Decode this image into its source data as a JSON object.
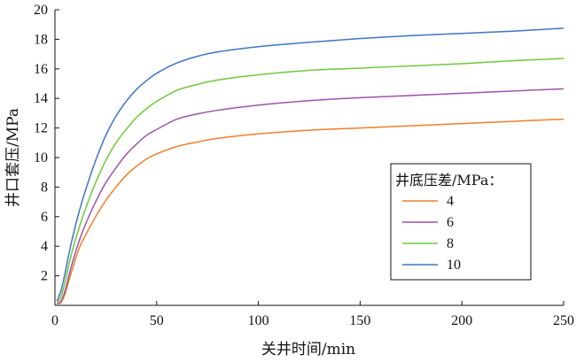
{
  "chart_data": {
    "type": "line",
    "xlabel": "关井时间/min",
    "ylabel": "井口套压/MPa",
    "xlim": [
      0,
      250
    ],
    "ylim": [
      0,
      20
    ],
    "xticks": [
      0,
      50,
      100,
      150,
      200,
      250
    ],
    "yticks": [
      2,
      4,
      6,
      8,
      10,
      12,
      14,
      16,
      18,
      20
    ],
    "grid": false,
    "legend": {
      "title": "井底压差/MPa：",
      "placement": "right"
    },
    "series": [
      {
        "name": "4",
        "color": "#f07f2a",
        "x": [
          1,
          3,
          5,
          8,
          12,
          16,
          20,
          25,
          30,
          35,
          40,
          45,
          50,
          60,
          70,
          80,
          100,
          125,
          150,
          175,
          200,
          225,
          250
        ],
        "y": [
          0.1,
          0.2,
          0.8,
          2.2,
          3.9,
          5.0,
          6.0,
          7.1,
          8.0,
          8.8,
          9.4,
          9.9,
          10.25,
          10.75,
          11.05,
          11.3,
          11.6,
          11.85,
          12.0,
          12.15,
          12.3,
          12.45,
          12.6
        ]
      },
      {
        "name": "6",
        "color": "#9b54a8",
        "x": [
          1,
          3,
          5,
          8,
          12,
          16,
          20,
          25,
          30,
          35,
          40,
          45,
          50,
          60,
          70,
          80,
          100,
          125,
          150,
          175,
          200,
          225,
          250
        ],
        "y": [
          0.1,
          0.3,
          1.0,
          2.6,
          4.4,
          5.8,
          7.0,
          8.3,
          9.3,
          10.2,
          10.9,
          11.5,
          11.9,
          12.6,
          12.95,
          13.2,
          13.55,
          13.85,
          14.05,
          14.2,
          14.35,
          14.5,
          14.65
        ]
      },
      {
        "name": "8",
        "color": "#6fc73a",
        "x": [
          1,
          3,
          5,
          8,
          12,
          16,
          20,
          25,
          30,
          35,
          40,
          45,
          50,
          60,
          70,
          80,
          100,
          125,
          150,
          175,
          200,
          225,
          250
        ],
        "y": [
          0.2,
          0.6,
          1.6,
          3.4,
          5.3,
          6.9,
          8.3,
          9.8,
          11.0,
          11.9,
          12.7,
          13.3,
          13.8,
          14.55,
          14.95,
          15.25,
          15.6,
          15.9,
          16.05,
          16.2,
          16.35,
          16.55,
          16.7
        ]
      },
      {
        "name": "10",
        "color": "#3f74c4",
        "x": [
          1,
          3,
          5,
          8,
          12,
          16,
          20,
          25,
          30,
          35,
          40,
          45,
          50,
          60,
          70,
          80,
          100,
          125,
          150,
          175,
          200,
          225,
          250
        ],
        "y": [
          0.3,
          1.0,
          2.2,
          4.2,
          6.4,
          8.2,
          9.8,
          11.5,
          12.8,
          13.8,
          14.6,
          15.2,
          15.7,
          16.4,
          16.85,
          17.15,
          17.5,
          17.8,
          18.05,
          18.25,
          18.4,
          18.55,
          18.75
        ]
      }
    ]
  }
}
